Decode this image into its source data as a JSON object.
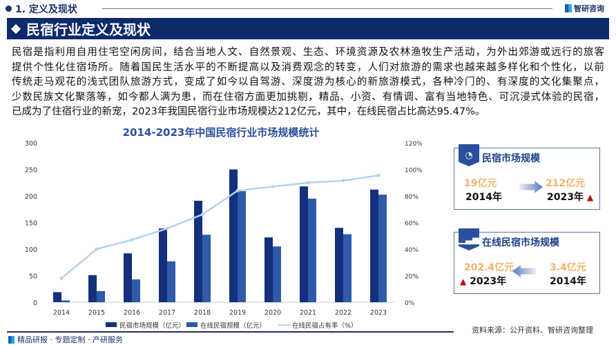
{
  "header": {
    "section": "1. 定义及现状",
    "logo": "智研咨询"
  },
  "banner": {
    "title": "民宿行业定义及现状"
  },
  "paragraph": [
    "民宿是指利用自用住宅空闲房间，结合当地人文、自然景观、生态、环境资源及农林渔牧生产活动，为外出郊游或远行的旅客",
    "提供个性化住宿场所。随着国民生活水平的不断提高以及消费观念的转变，人们对旅游的需求也越来越多样化和个性化，以前",
    "传统走马观花的浅式团队旅游方式，变成了如今以自驾游、深度游为核心的新旅游模式，各种冷门的、有深度的文化集聚点，",
    "少数民族文化聚落等，如今都人满为患，而在住宿方面更加挑剔，精品、小资、有情调、富有当地特色、可沉浸式体验的民宿，",
    "已成为了住宿行业的新宠，2023年我国民宿行业市场规模达212亿元，其中，在线民宿占比高达95.47%。"
  ],
  "chart_data": {
    "type": "bar",
    "title": "2014-2023年中国民宿行业市场规模统计",
    "categories": [
      "2014",
      "2015",
      "2016",
      "2017",
      "2018",
      "2019",
      "2020",
      "2021",
      "2022",
      "2023"
    ],
    "series": [
      {
        "name": "民宿市场规模（亿元）",
        "type": "bar",
        "axis": "left",
        "color": "#14307d",
        "values": [
          19,
          51,
          92,
          139,
          191,
          250,
          122,
          218,
          140,
          212
        ]
      },
      {
        "name": "在线民宿规模（亿元）",
        "type": "bar",
        "axis": "left",
        "color": "#2f5aa8",
        "values": [
          3.4,
          21,
          43,
          77,
          127,
          209,
          105,
          195,
          128,
          202.4
        ]
      },
      {
        "name": "在线民宿占有率（%）",
        "type": "line",
        "axis": "right",
        "color": "#b4d2ea",
        "values": [
          18,
          40,
          47,
          55.5,
          66,
          84,
          87,
          90,
          91.5,
          95.47
        ]
      }
    ],
    "yleft": {
      "ticks": [
        "0",
        "50",
        "100",
        "150",
        "200",
        "250",
        "300"
      ],
      "range": [
        0,
        300
      ]
    },
    "yright": {
      "ticks": [
        "0%",
        "20%",
        "40%",
        "60%",
        "80%",
        "100%",
        "120%"
      ],
      "range": [
        0,
        120
      ]
    },
    "legend": "bottom",
    "grid": false
  },
  "cards": [
    {
      "title": "民宿市场规模",
      "icon": "pie-chart-icon",
      "from_value": "19亿元",
      "from_year": "2014年",
      "to_value": "212亿元",
      "to_year": "2023年"
    },
    {
      "title": "在线民宿市场规模",
      "icon": "growth-chart-icon",
      "from_value": "3.4亿元",
      "from_year": "2014年",
      "to_value": "202.4亿元",
      "to_year": "2023年"
    }
  ],
  "source": "资料来源：公开资料、智研咨询整理",
  "footer": "精品研报 · 专题定制 · 产研服务"
}
